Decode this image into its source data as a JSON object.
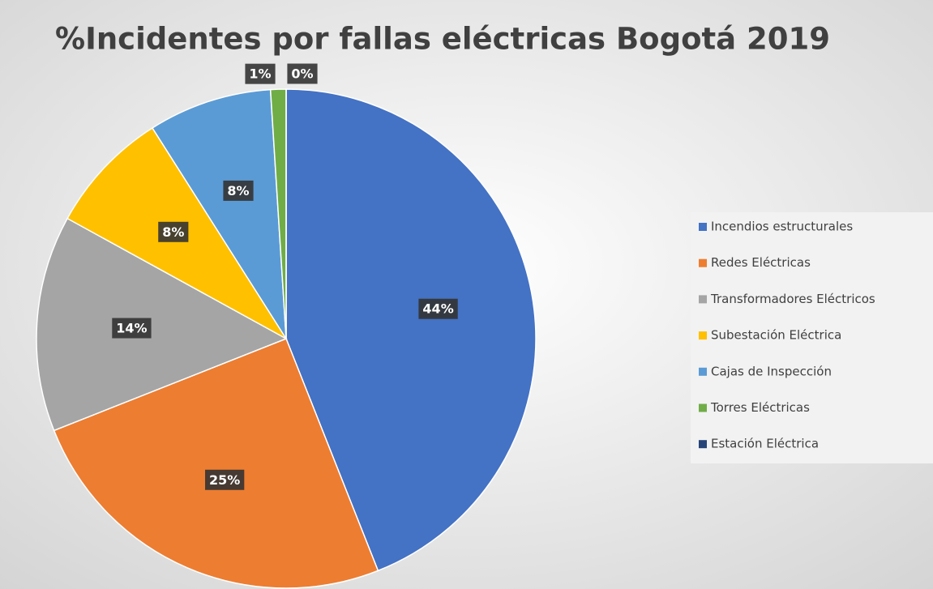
{
  "chart_data": {
    "type": "pie",
    "title": "%Incidentes por fallas eléctricas Bogotá 2019",
    "categories": [
      "Incendios estructurales",
      "Redes Eléctricas",
      "Transformadores Eléctricos",
      "Subestación Eléctrica",
      "Cajas de Inspección",
      "Torres Eléctricas",
      "Estación Eléctrica"
    ],
    "values": [
      44,
      25,
      14,
      8,
      8,
      1,
      0
    ],
    "value_labels": [
      "44%",
      "25%",
      "14%",
      "8%",
      "8%",
      "1%",
      "0%"
    ],
    "colors": [
      "#4472c4",
      "#ed7d31",
      "#a5a5a5",
      "#ffc000",
      "#5b9bd5",
      "#70ad47",
      "#264478"
    ],
    "legend": "right"
  }
}
